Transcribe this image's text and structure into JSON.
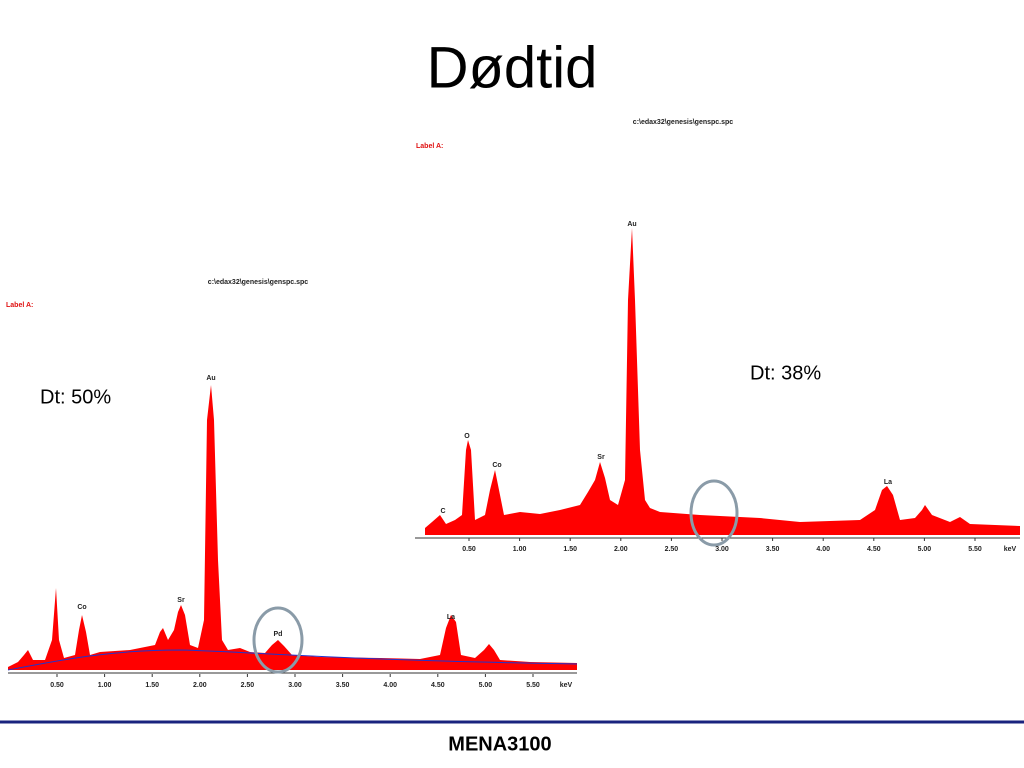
{
  "title": "Dødtid",
  "spectra": [
    {
      "file": "c:\\edax32\\genesis\\genspc.spc",
      "label": "Label A:",
      "elements": [
        "Au",
        "O",
        "Co",
        "Sr",
        "C",
        "La"
      ],
      "ticks": [
        "0.50",
        "1.00",
        "1.50",
        "2.00",
        "2.50",
        "3.00",
        "3.50",
        "4.00",
        "4.50",
        "5.00",
        "5.50"
      ],
      "unit": "keV",
      "deadtime": "Dt: 38%"
    },
    {
      "file": "c:\\edax32\\genesis\\genspc.spc",
      "label": "Label A:",
      "elements": [
        "Au",
        "Co",
        "Sr",
        "Pd",
        "La"
      ],
      "ticks": [
        "0.50",
        "1.00",
        "1.50",
        "2.00",
        "2.50",
        "3.00",
        "3.50",
        "4.00",
        "4.50",
        "5.00",
        "5.50"
      ],
      "unit": "keV",
      "deadtime": "Dt: 50%"
    }
  ],
  "footer": "MENA3100"
}
